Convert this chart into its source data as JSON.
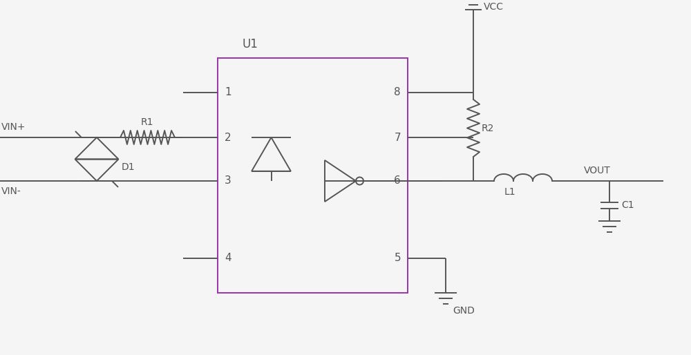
{
  "bg_color": "#f5f5f5",
  "line_color": "#555555",
  "line_width": 1.4,
  "box_color": "#9933aa",
  "figsize": [
    10.0,
    5.14
  ],
  "dpi": 100,
  "xlim": [
    0,
    10
  ],
  "ylim": [
    0,
    5.14
  ]
}
